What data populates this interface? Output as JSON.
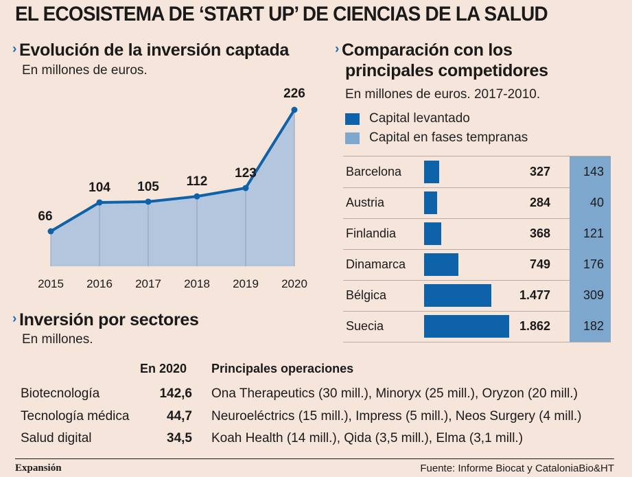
{
  "title": "EL ECOSISTEMA DE ‘START UP’ DE CIENCIAS DE LA SALUD",
  "evolucion": {
    "title": "Evolución de la inversión captada",
    "subtitle": "En millones de euros."
  },
  "comparacion": {
    "title_line1": "Comparación con los",
    "title_line2": "principales competidores",
    "subtitle": "En millones de euros. 2017-2010.",
    "legend": [
      {
        "label": "Capital levantado",
        "color": "#0e62aa"
      },
      {
        "label": "Capital en fases tempranas",
        "color": "#7ea7ce"
      }
    ]
  },
  "sectores": {
    "title": "Inversión por sectores",
    "subtitle": "En millones.",
    "col_2020": "En 2020",
    "col_ops": "Principales operaciones",
    "rows": [
      {
        "sector": "Biotecnología",
        "value": "142,6",
        "ops": "Ona Therapeutics (30 mill.), Minoryx (25 mill.), Oryzon (20 mill.)"
      },
      {
        "sector": "Tecnología médica",
        "value": "44,7",
        "ops": "Neuroeléctrics (15 mill.), Impress (5 mill.), Neos Surgery (4 mill.)"
      },
      {
        "sector": "Salud digital",
        "value": "34,5",
        "ops": "Koah Health (14 mill.), Qida (3,5 mill.), Elma (3,1 mill.)"
      }
    ]
  },
  "footer": {
    "brand": "Expansión",
    "source": "Fuente: Informe Biocat y CataloniaBio&HT"
  },
  "chart_data": [
    {
      "type": "area",
      "title": "Evolución de la inversión captada",
      "subtitle": "En millones de euros.",
      "x": [
        "2015",
        "2016",
        "2017",
        "2018",
        "2019",
        "2020"
      ],
      "values": [
        66,
        104,
        105,
        112,
        123,
        226
      ],
      "labels": [
        "66",
        "104",
        "105",
        "112",
        "123",
        "226"
      ],
      "ylim": [
        0,
        226
      ],
      "line_color": "#0e62aa",
      "fill_color": "#b3c6de",
      "grid": false
    },
    {
      "type": "bar",
      "title": "Comparación con los principales competidores",
      "subtitle": "En millones de euros. 2017-2010.",
      "categories": [
        "Barcelona",
        "Austria",
        "Finlandia",
        "Dinamarca",
        "Bélgica",
        "Suecia"
      ],
      "series": [
        {
          "name": "Capital levantado",
          "values": [
            327,
            284,
            368,
            749,
            1477,
            1862
          ],
          "labels": [
            "327",
            "284",
            "368",
            "749",
            "1.477",
            "1.862"
          ]
        },
        {
          "name": "Capital en fases tempranas",
          "values": [
            143,
            40,
            121,
            176,
            309,
            182
          ],
          "labels": [
            "143",
            "40",
            "121",
            "176",
            "309",
            "182"
          ]
        }
      ],
      "xlim": [
        0,
        1862
      ],
      "legend": "top-left"
    }
  ]
}
